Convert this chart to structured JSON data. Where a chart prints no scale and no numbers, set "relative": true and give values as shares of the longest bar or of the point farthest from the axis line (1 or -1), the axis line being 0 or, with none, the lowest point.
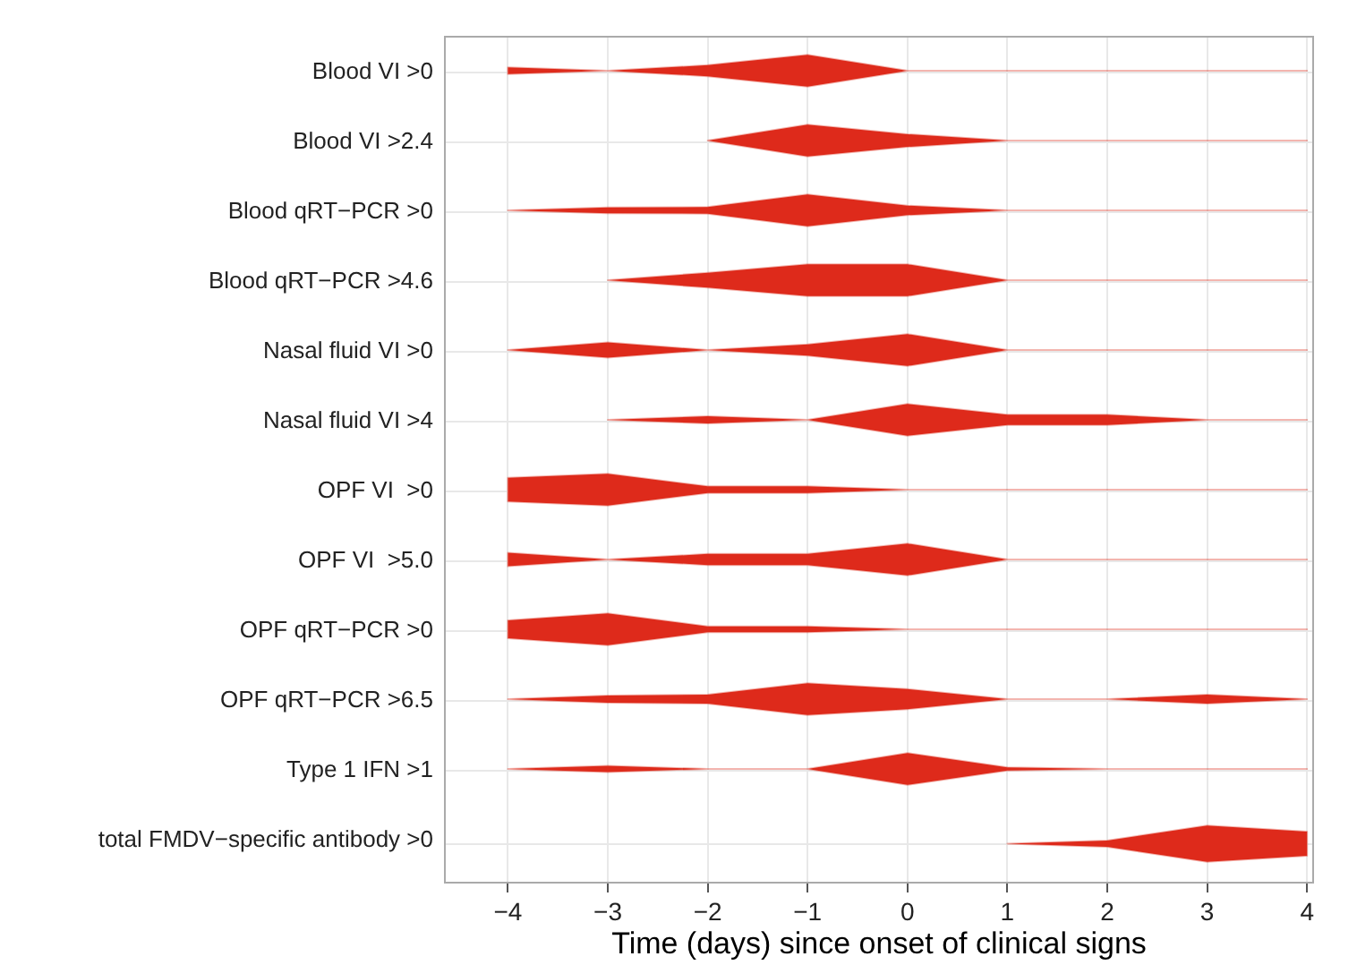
{
  "chart_data": [
    {
      "type": "area",
      "relative": true,
      "ylabel": "Blood VI >0",
      "x": [
        -4,
        -3,
        -2,
        -1,
        0,
        1,
        2,
        3,
        4
      ],
      "xlim": [
        -4.64,
        4.07
      ],
      "xticks": [
        -4,
        -3,
        -2,
        -1,
        0,
        1,
        2,
        3,
        4
      ],
      "tick_labels": false,
      "grid": "x",
      "series": [
        {
          "color": "#de2a1b",
          "values": [
            0.21,
            0,
            0.35,
            1,
            0,
            0,
            0,
            0,
            0
          ]
        }
      ]
    },
    {
      "type": "area",
      "relative": true,
      "ylabel": "Blood VI >2.4",
      "x": [
        -2,
        -1,
        0,
        1,
        2,
        3,
        4
      ],
      "xlim": [
        -4.64,
        4.07
      ],
      "xticks": [
        -4,
        -3,
        -2,
        -1,
        0,
        1,
        2,
        3,
        4
      ],
      "tick_labels": false,
      "grid": "x",
      "series": [
        {
          "color": "#de2a1b",
          "values": [
            0,
            1,
            0.4,
            0,
            0,
            0,
            0
          ]
        }
      ]
    },
    {
      "type": "area",
      "relative": true,
      "ylabel": "Blood qRT−PCR >0",
      "x": [
        -4,
        -3,
        -2,
        -1,
        0,
        1,
        2,
        3,
        4
      ],
      "xlim": [
        -4.64,
        4.07
      ],
      "xticks": [
        -4,
        -3,
        -2,
        -1,
        0,
        1,
        2,
        3,
        4
      ],
      "tick_labels": false,
      "grid": "x",
      "series": [
        {
          "color": "#de2a1b",
          "values": [
            0,
            0.18,
            0.21,
            1,
            0.3,
            0,
            0,
            0,
            0
          ]
        }
      ]
    },
    {
      "type": "area",
      "relative": true,
      "ylabel": "Blood qRT−PCR >4.6",
      "x": [
        -3,
        -2,
        -1,
        0,
        1,
        2,
        3,
        4
      ],
      "xlim": [
        -4.64,
        4.07
      ],
      "xticks": [
        -4,
        -3,
        -2,
        -1,
        0,
        1,
        2,
        3,
        4
      ],
      "tick_labels": false,
      "grid": "x",
      "series": [
        {
          "color": "#de2a1b",
          "values": [
            0,
            0.47,
            1,
            1,
            0,
            0,
            0,
            0
          ]
        }
      ]
    },
    {
      "type": "area",
      "relative": true,
      "ylabel": "Nasal fluid VI >0",
      "x": [
        -4,
        -3,
        -2,
        -1,
        0,
        1,
        2,
        3,
        4
      ],
      "xlim": [
        -4.64,
        4.07
      ],
      "xticks": [
        -4,
        -3,
        -2,
        -1,
        0,
        1,
        2,
        3,
        4
      ],
      "tick_labels": false,
      "grid": "x",
      "series": [
        {
          "color": "#de2a1b",
          "values": [
            0,
            0.48,
            0,
            0.35,
            1,
            0,
            0,
            0,
            0
          ]
        }
      ]
    },
    {
      "type": "area",
      "relative": true,
      "ylabel": "Nasal fluid VI >4",
      "x": [
        -3,
        -2,
        -1,
        0,
        1,
        2,
        3,
        4
      ],
      "xlim": [
        -4.64,
        4.07
      ],
      "xticks": [
        -4,
        -3,
        -2,
        -1,
        0,
        1,
        2,
        3,
        4
      ],
      "tick_labels": false,
      "grid": "x",
      "series": [
        {
          "color": "#de2a1b",
          "values": [
            0,
            0.23,
            0,
            1,
            0.33,
            0.33,
            0,
            0
          ]
        }
      ]
    },
    {
      "type": "area",
      "relative": true,
      "ylabel": "OPF VI  >0",
      "x": [
        -4,
        -3,
        -2,
        -1,
        0,
        1,
        2,
        3,
        4
      ],
      "xlim": [
        -4.64,
        4.07
      ],
      "xticks": [
        -4,
        -3,
        -2,
        -1,
        0,
        1,
        2,
        3,
        4
      ],
      "tick_labels": false,
      "grid": "x",
      "series": [
        {
          "color": "#de2a1b",
          "values": [
            0.75,
            1,
            0.21,
            0.21,
            0,
            0,
            0,
            0,
            0
          ]
        }
      ]
    },
    {
      "type": "area",
      "relative": true,
      "ylabel": "OPF VI  >5.0",
      "x": [
        -4,
        -3,
        -2,
        -1,
        0,
        1,
        2,
        3,
        4
      ],
      "xlim": [
        -4.64,
        4.07
      ],
      "xticks": [
        -4,
        -3,
        -2,
        -1,
        0,
        1,
        2,
        3,
        4
      ],
      "tick_labels": false,
      "grid": "x",
      "series": [
        {
          "color": "#de2a1b",
          "values": [
            0.43,
            0,
            0.35,
            0.35,
            1,
            0,
            0,
            0,
            0
          ]
        }
      ]
    },
    {
      "type": "area",
      "relative": true,
      "ylabel": "OPF qRT−PCR >0",
      "x": [
        -4,
        -3,
        -2,
        -1,
        0,
        1,
        2,
        3,
        4
      ],
      "xlim": [
        -4.64,
        4.07
      ],
      "xticks": [
        -4,
        -3,
        -2,
        -1,
        0,
        1,
        2,
        3,
        4
      ],
      "tick_labels": false,
      "grid": "x",
      "series": [
        {
          "color": "#de2a1b",
          "values": [
            0.56,
            1,
            0.18,
            0.18,
            0,
            0,
            0,
            0,
            0
          ]
        }
      ]
    },
    {
      "type": "area",
      "relative": true,
      "ylabel": "OPF qRT−PCR >6.5",
      "x": [
        -4,
        -3,
        -2,
        -1,
        0,
        1,
        2,
        3,
        4
      ],
      "xlim": [
        -4.64,
        4.07
      ],
      "xticks": [
        -4,
        -3,
        -2,
        -1,
        0,
        1,
        2,
        3,
        4
      ],
      "tick_labels": false,
      "grid": "x",
      "series": [
        {
          "color": "#de2a1b",
          "values": [
            0,
            0.23,
            0.28,
            1,
            0.63,
            0,
            0,
            0.28,
            0
          ]
        }
      ]
    },
    {
      "type": "area",
      "relative": true,
      "ylabel": "Type 1 IFN >1",
      "x": [
        -4,
        -3,
        -2,
        -1,
        0,
        1,
        2,
        3,
        4
      ],
      "xlim": [
        -4.64,
        4.07
      ],
      "xticks": [
        -4,
        -3,
        -2,
        -1,
        0,
        1,
        2,
        3,
        4
      ],
      "tick_labels": false,
      "grid": "x",
      "series": [
        {
          "color": "#de2a1b",
          "values": [
            0,
            0.2,
            0,
            0,
            1,
            0.1,
            0,
            0,
            0
          ]
        }
      ]
    },
    {
      "type": "area",
      "relative": true,
      "ylabel": "total FMDV−specific antibody >0",
      "xlabel": "Time (days) since onset of clinical signs",
      "x": [
        1,
        2,
        3,
        4
      ],
      "xlim": [
        -4.64,
        4.07
      ],
      "xticks": [
        {
          "value": -4,
          "label": "−4"
        },
        {
          "value": -3,
          "label": "−3"
        },
        {
          "value": -2,
          "label": "−2"
        },
        {
          "value": -1,
          "label": "−1"
        },
        0,
        1,
        2,
        3,
        4
      ],
      "tick_labels": "x",
      "grid": "x",
      "series": [
        {
          "color": "#de2a1b",
          "values": [
            0,
            0.17,
            1,
            0.67
          ]
        }
      ]
    }
  ]
}
